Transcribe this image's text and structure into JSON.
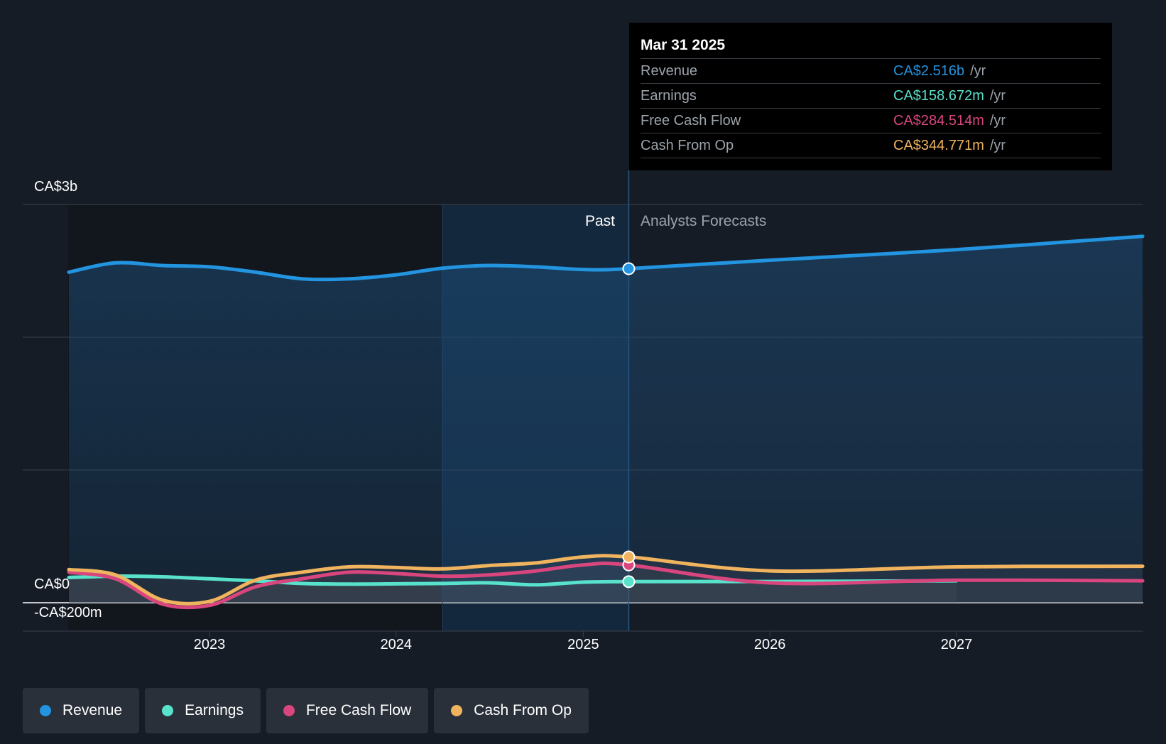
{
  "chart_data": {
    "type": "line",
    "currency_axis": [
      "CA$3b",
      "CA$0",
      "-CA$200m"
    ],
    "ylim": [
      -400000000,
      3000000000
    ],
    "x_ticks": [
      "2023",
      "2024",
      "2025",
      "2026",
      "2027"
    ],
    "region_labels": {
      "past": "Past",
      "forecast": "Analysts Forecasts"
    },
    "split_date": "2025-03-31",
    "series": [
      {
        "name": "Revenue",
        "color": "#2394df",
        "points": [
          [
            "2022-04-01",
            2490000000.0
          ],
          [
            "2022-07-01",
            2560000000.0
          ],
          [
            "2022-10-01",
            2540000000.0
          ],
          [
            "2023-01-01",
            2530000000.0
          ],
          [
            "2023-04-01",
            2490000000.0
          ],
          [
            "2023-07-01",
            2440000000.0
          ],
          [
            "2023-10-01",
            2440000000.0
          ],
          [
            "2024-01-01",
            2470000000.0
          ],
          [
            "2024-04-01",
            2520000000.0
          ],
          [
            "2024-07-01",
            2540000000.0
          ],
          [
            "2024-10-01",
            2530000000.0
          ],
          [
            "2025-01-01",
            2510000000.0
          ],
          [
            "2025-03-31",
            2516000000.0
          ],
          [
            "2026-01-01",
            2580000000.0
          ],
          [
            "2027-01-01",
            2660000000.0
          ],
          [
            "2027-12-31",
            2760000000.0
          ]
        ]
      },
      {
        "name": "Earnings",
        "color": "#58e1cb",
        "points": [
          [
            "2022-04-01",
            190000000.0
          ],
          [
            "2022-07-01",
            200000000.0
          ],
          [
            "2022-10-01",
            195000000.0
          ],
          [
            "2023-01-01",
            180000000.0
          ],
          [
            "2023-04-01",
            165000000.0
          ],
          [
            "2023-07-01",
            145000000.0
          ],
          [
            "2023-10-01",
            140000000.0
          ],
          [
            "2024-01-01",
            142000000.0
          ],
          [
            "2024-04-01",
            145000000.0
          ],
          [
            "2024-07-01",
            150000000.0
          ],
          [
            "2024-10-01",
            135000000.0
          ],
          [
            "2025-01-01",
            155000000.0
          ],
          [
            "2025-03-31",
            158672000.0
          ],
          [
            "2026-01-01",
            160000000.0
          ],
          [
            "2027-01-01",
            165000000.0
          ]
        ]
      },
      {
        "name": "Free Cash Flow",
        "color": "#d9467e",
        "points": [
          [
            "2022-04-01",
            230000000.0
          ],
          [
            "2022-07-01",
            180000000.0
          ],
          [
            "2022-10-01",
            -10000000.0
          ],
          [
            "2023-01-01",
            -20000000.0
          ],
          [
            "2023-04-01",
            120000000.0
          ],
          [
            "2023-07-01",
            180000000.0
          ],
          [
            "2023-10-01",
            230000000.0
          ],
          [
            "2024-01-01",
            220000000.0
          ],
          [
            "2024-04-01",
            200000000.0
          ],
          [
            "2024-07-01",
            210000000.0
          ],
          [
            "2024-10-01",
            240000000.0
          ],
          [
            "2025-01-01",
            285000000.0
          ],
          [
            "2025-03-31",
            284514000.0
          ],
          [
            "2026-01-01",
            150000000.0
          ],
          [
            "2027-01-01",
            170000000.0
          ],
          [
            "2027-12-31",
            165000000.0
          ]
        ]
      },
      {
        "name": "Cash From Op",
        "color": "#f0b35e",
        "points": [
          [
            "2022-04-01",
            250000000.0
          ],
          [
            "2022-07-01",
            210000000.0
          ],
          [
            "2022-10-01",
            20000000.0
          ],
          [
            "2023-01-01",
            10000000.0
          ],
          [
            "2023-04-01",
            170000000.0
          ],
          [
            "2023-07-01",
            230000000.0
          ],
          [
            "2023-10-01",
            270000000.0
          ],
          [
            "2024-01-01",
            265000000.0
          ],
          [
            "2024-04-01",
            255000000.0
          ],
          [
            "2024-07-01",
            280000000.0
          ],
          [
            "2024-10-01",
            300000000.0
          ],
          [
            "2025-01-01",
            345000000.0
          ],
          [
            "2025-03-31",
            344771000.0
          ],
          [
            "2026-01-01",
            240000000.0
          ],
          [
            "2027-01-01",
            270000000.0
          ],
          [
            "2027-12-31",
            275000000.0
          ]
        ]
      }
    ]
  },
  "tooltip": {
    "date": "Mar 31 2025",
    "rows": [
      {
        "name": "Revenue",
        "value": "CA$2.516b",
        "unit": "/yr",
        "color": "#2394df"
      },
      {
        "name": "Earnings",
        "value": "CA$158.672m",
        "unit": "/yr",
        "color": "#58e1cb"
      },
      {
        "name": "Free Cash Flow",
        "value": "CA$284.514m",
        "unit": "/yr",
        "color": "#d9467e"
      },
      {
        "name": "Cash From Op",
        "value": "CA$344.771m",
        "unit": "/yr",
        "color": "#f0b35e"
      }
    ]
  },
  "legend": [
    {
      "label": "Revenue",
      "color": "#2394df"
    },
    {
      "label": "Earnings",
      "color": "#58e1cb"
    },
    {
      "label": "Free Cash Flow",
      "color": "#d9467e"
    },
    {
      "label": "Cash From Op",
      "color": "#f0b35e"
    }
  ]
}
